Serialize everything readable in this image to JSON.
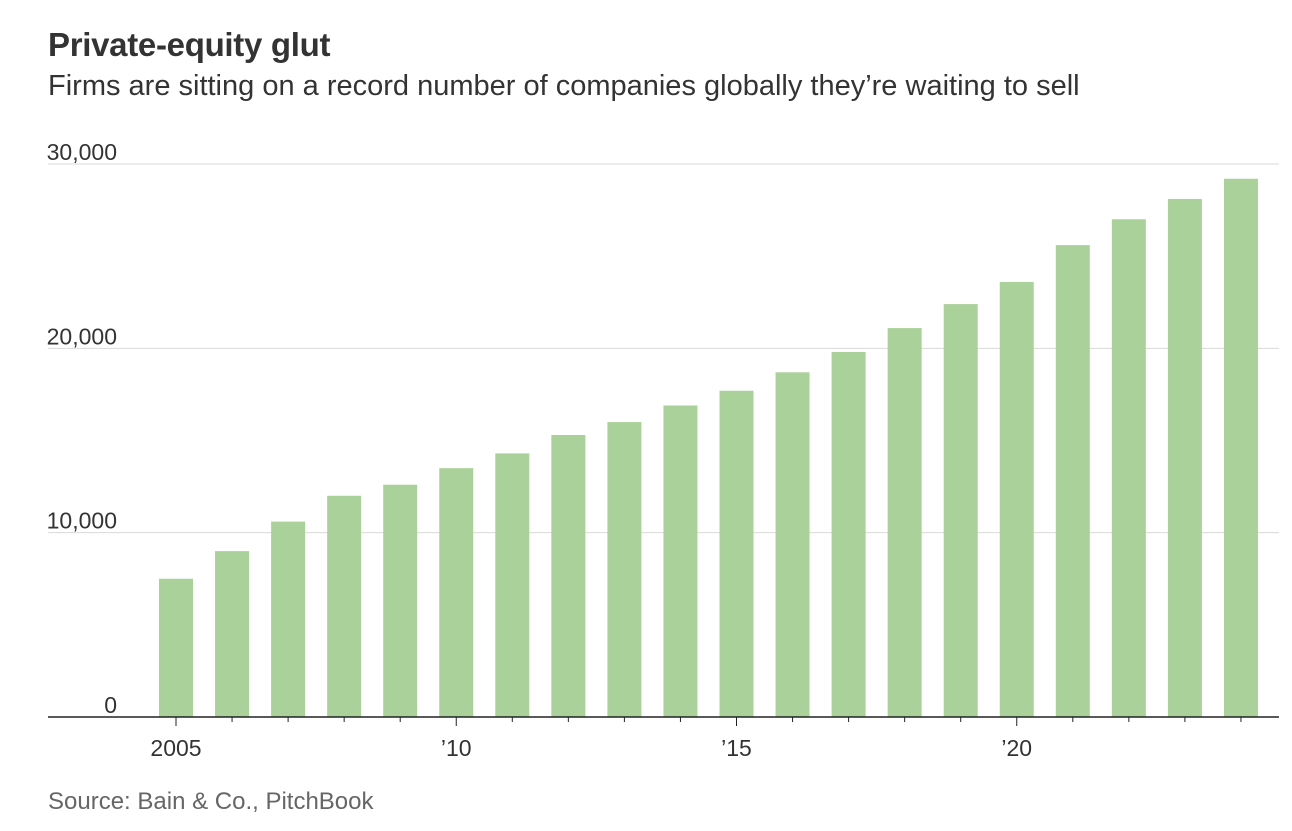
{
  "title": "Private-equity glut",
  "subtitle": "Firms are sitting on a record number of companies globally they’re waiting to sell",
  "source": "Source: Bain & Co., PitchBook",
  "colors": {
    "bar": "#abd19a",
    "grid": "#d9d9d9",
    "axis": "#222222"
  },
  "chart_data": {
    "type": "bar",
    "title": "Private-equity glut",
    "xlabel": "",
    "ylabel": "",
    "ylim": [
      0,
      30000
    ],
    "grid": true,
    "categories": [
      2005,
      2006,
      2007,
      2008,
      2009,
      2010,
      2011,
      2012,
      2013,
      2014,
      2015,
      2016,
      2017,
      2018,
      2019,
      2020,
      2021,
      2022,
      2023,
      2024
    ],
    "values": [
      7500,
      9000,
      10600,
      12000,
      12600,
      13500,
      14300,
      15300,
      16000,
      16900,
      17700,
      18700,
      19800,
      21100,
      22400,
      23600,
      25600,
      27000,
      28100,
      29200
    ],
    "yticks": [
      {
        "value": 0,
        "label": "0"
      },
      {
        "value": 10000,
        "label": "10,000"
      },
      {
        "value": 20000,
        "label": "20,000"
      },
      {
        "value": 30000,
        "label": "30,000"
      }
    ],
    "xticks": [
      {
        "value": 2005,
        "label": "2005"
      },
      {
        "value": 2010,
        "label": "’10"
      },
      {
        "value": 2015,
        "label": "’15"
      },
      {
        "value": 2020,
        "label": "’20"
      }
    ]
  }
}
